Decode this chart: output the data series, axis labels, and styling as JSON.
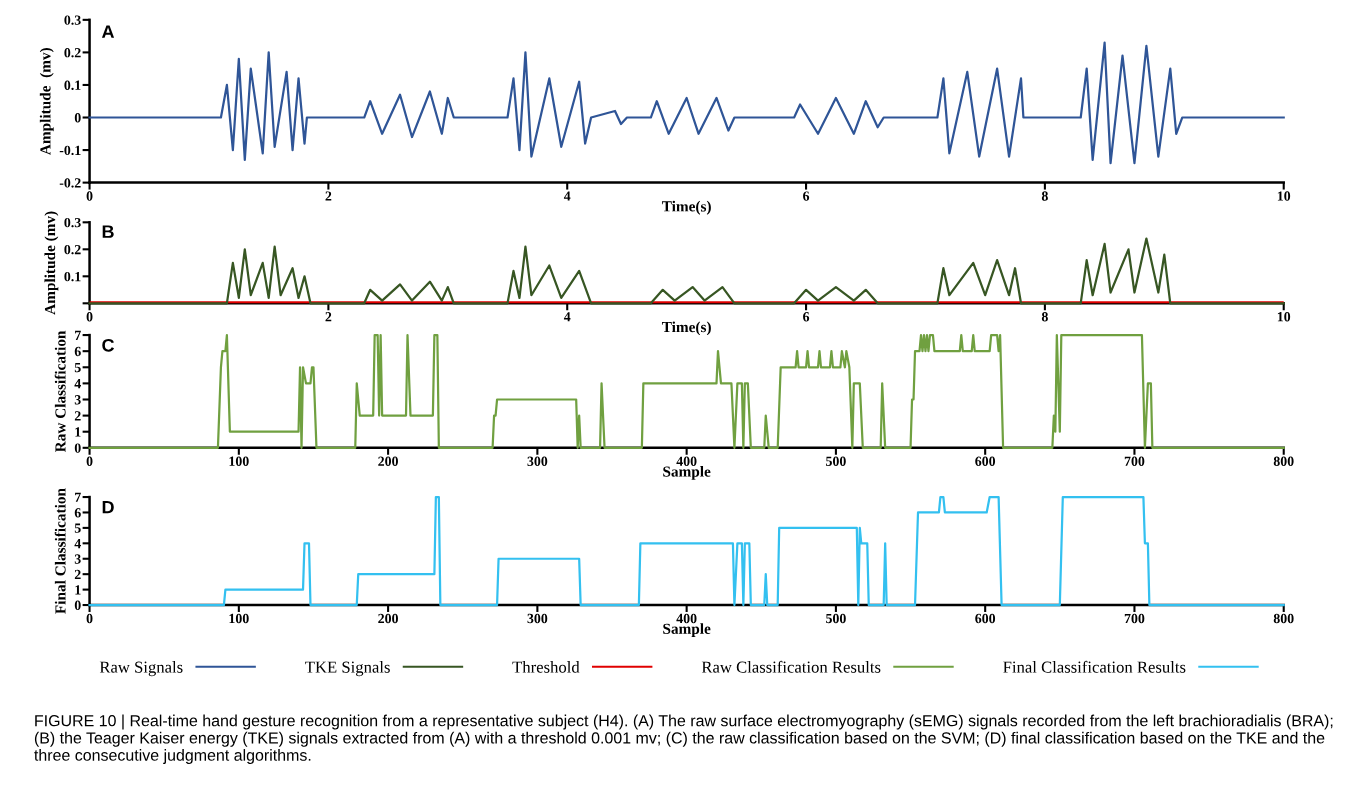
{
  "chart_data": [
    {
      "type": "line",
      "xlabel": "Time(s)",
      "ylabel": "Amplitude  (mv)",
      "annotations": [
        "A"
      ],
      "legend": "bottom",
      "grid": false,
      "xlim": [
        0,
        10
      ],
      "xticks": [
        0,
        2,
        4,
        6,
        8,
        10
      ],
      "ylim": [
        -0.2,
        0.3
      ],
      "yticks": [
        -0.2,
        -0.1,
        0,
        0.1,
        0.2,
        0.3
      ],
      "series": [
        {
          "name": "Raw Signals",
          "color": "#2f5597",
          "x": [
            0,
            1.1,
            1.15,
            1.2,
            1.25,
            1.3,
            1.35,
            1.45,
            1.5,
            1.55,
            1.65,
            1.7,
            1.75,
            1.8,
            1.82,
            2.3,
            2.35,
            2.45,
            2.6,
            2.7,
            2.85,
            2.95,
            3.0,
            3.05,
            3.5,
            3.55,
            3.6,
            3.65,
            3.7,
            3.85,
            3.95,
            4.1,
            4.15,
            4.2,
            4.4,
            4.45,
            4.5,
            4.7,
            4.75,
            4.85,
            5.0,
            5.1,
            5.25,
            5.35,
            5.4,
            5.9,
            5.95,
            6.1,
            6.25,
            6.4,
            6.5,
            6.6,
            6.65,
            7.1,
            7.15,
            7.2,
            7.35,
            7.45,
            7.6,
            7.7,
            7.8,
            7.82,
            8.3,
            8.35,
            8.4,
            8.5,
            8.55,
            8.65,
            8.75,
            8.85,
            8.95,
            9.05,
            9.1,
            9.15,
            10
          ],
          "values": [
            0,
            0,
            0.1,
            -0.1,
            0.18,
            -0.13,
            0.15,
            -0.11,
            0.2,
            -0.09,
            0.14,
            -0.1,
            0.12,
            -0.08,
            0,
            0,
            0.05,
            -0.05,
            0.07,
            -0.06,
            0.08,
            -0.05,
            0.06,
            0,
            0,
            0.12,
            -0.1,
            0.2,
            -0.12,
            0.12,
            -0.09,
            0.11,
            -0.08,
            0,
            0.02,
            -0.02,
            0,
            0,
            0.05,
            -0.05,
            0.06,
            -0.05,
            0.06,
            -0.04,
            0,
            0,
            0.04,
            -0.05,
            0.06,
            -0.05,
            0.05,
            -0.03,
            0,
            0,
            0.12,
            -0.11,
            0.14,
            -0.12,
            0.15,
            -0.12,
            0.12,
            0,
            0,
            0.15,
            -0.13,
            0.23,
            -0.14,
            0.19,
            -0.14,
            0.22,
            -0.12,
            0.15,
            -0.05,
            0,
            0
          ]
        }
      ]
    },
    {
      "type": "line",
      "xlabel": "Time(s)",
      "ylabel": "Amplitude (mv)",
      "annotations": [
        "B"
      ],
      "legend": "bottom",
      "grid": false,
      "xlim": [
        0,
        10
      ],
      "xticks": [
        0,
        2,
        4,
        6,
        8,
        10
      ],
      "ylim": [
        0,
        0.3
      ],
      "yticks": [
        {
          "value": 0,
          "label": null
        },
        0.1,
        0.2,
        0.3
      ],
      "ref_lines": [
        {
          "axis": "y",
          "value": 0.001,
          "label": "Threshold",
          "color": "#e00000"
        }
      ],
      "series": [
        {
          "name": "TKE Signals",
          "color": "#375623",
          "x": [
            0,
            1.15,
            1.2,
            1.25,
            1.3,
            1.35,
            1.45,
            1.5,
            1.55,
            1.6,
            1.7,
            1.75,
            1.8,
            1.85,
            2.3,
            2.35,
            2.45,
            2.6,
            2.7,
            2.85,
            2.95,
            3.0,
            3.05,
            3.5,
            3.55,
            3.6,
            3.65,
            3.7,
            3.85,
            3.95,
            4.1,
            4.2,
            4.7,
            4.8,
            4.9,
            5.05,
            5.15,
            5.3,
            5.4,
            5.9,
            6.0,
            6.1,
            6.25,
            6.4,
            6.5,
            6.6,
            7.1,
            7.15,
            7.2,
            7.4,
            7.5,
            7.6,
            7.7,
            7.75,
            7.8,
            8.3,
            8.35,
            8.4,
            8.5,
            8.55,
            8.7,
            8.75,
            8.85,
            8.95,
            9.0,
            9.05,
            10
          ],
          "values": [
            0,
            0,
            0.15,
            0.02,
            0.2,
            0.03,
            0.15,
            0.02,
            0.21,
            0.03,
            0.13,
            0.02,
            0.1,
            0,
            0,
            0.05,
            0.01,
            0.07,
            0.01,
            0.08,
            0.01,
            0.06,
            0,
            0,
            0.12,
            0.02,
            0.21,
            0.03,
            0.14,
            0.02,
            0.12,
            0,
            0,
            0.05,
            0.01,
            0.06,
            0.01,
            0.06,
            0,
            0,
            0.05,
            0.01,
            0.06,
            0.01,
            0.05,
            0,
            0,
            0.13,
            0.03,
            0.15,
            0.03,
            0.16,
            0.03,
            0.13,
            0,
            0,
            0.16,
            0.03,
            0.22,
            0.04,
            0.2,
            0.04,
            0.24,
            0.04,
            0.18,
            0,
            0
          ]
        }
      ]
    },
    {
      "type": "line",
      "xlabel": "Sample",
      "ylabel": "Raw Classification",
      "annotations": [
        "C"
      ],
      "legend": "bottom",
      "grid": false,
      "xlim": [
        0,
        800
      ],
      "xticks": [
        0,
        100,
        200,
        300,
        400,
        500,
        600,
        700,
        800
      ],
      "ylim": [
        0,
        7
      ],
      "yticks": [
        0,
        1,
        2,
        3,
        4,
        5,
        6,
        7
      ],
      "series": [
        {
          "name": "Raw Classification Results",
          "color": "#70a040",
          "x": [
            0,
            86,
            88,
            89,
            91,
            92,
            94,
            140,
            141,
            142,
            143,
            145,
            148,
            149,
            150,
            152,
            178,
            179,
            181,
            190,
            191,
            193,
            194,
            195,
            196,
            212,
            213,
            215,
            230,
            231,
            233,
            234,
            270,
            271,
            272,
            273,
            326,
            327,
            328,
            329,
            342,
            343,
            345,
            370,
            371,
            420,
            421,
            423,
            430,
            432,
            434,
            437,
            438,
            439,
            441,
            443,
            452,
            453,
            455,
            461,
            463,
            473,
            474,
            475,
            480,
            481,
            482,
            488,
            489,
            490,
            496,
            497,
            498,
            503,
            504,
            506,
            507,
            509,
            511,
            512,
            516,
            518,
            530,
            531,
            533,
            550,
            551,
            552,
            553,
            556,
            557,
            558,
            559,
            560,
            561,
            562,
            563,
            565,
            566,
            583,
            584,
            585,
            591,
            592,
            593,
            603,
            604,
            608,
            609,
            610,
            612,
            645,
            646,
            647,
            648,
            650,
            651,
            705,
            707,
            709,
            711,
            712,
            800
          ],
          "values": [
            0,
            0,
            5,
            6,
            6,
            7,
            1,
            1,
            5,
            0,
            5,
            4,
            4,
            5,
            5,
            0,
            0,
            4,
            2,
            2,
            7,
            7,
            2,
            7,
            2,
            2,
            7,
            2,
            2,
            7,
            7,
            0,
            0,
            2,
            2,
            3,
            3,
            0,
            2,
            0,
            0,
            4,
            0,
            0,
            4,
            4,
            6,
            4,
            4,
            0,
            4,
            4,
            0,
            4,
            4,
            0,
            0,
            2,
            0,
            0,
            5,
            5,
            6,
            5,
            5,
            6,
            5,
            5,
            6,
            5,
            5,
            6,
            5,
            5,
            6,
            5,
            6,
            5,
            0,
            4,
            4,
            0,
            0,
            4,
            0,
            0,
            3,
            3,
            6,
            6,
            7,
            6,
            7,
            6,
            7,
            6,
            7,
            7,
            6,
            6,
            7,
            6,
            6,
            7,
            6,
            6,
            7,
            7,
            6,
            7,
            0,
            0,
            2,
            1,
            7,
            1,
            7,
            7,
            0,
            4,
            4,
            0,
            0
          ]
        }
      ]
    },
    {
      "type": "line",
      "xlabel": "Sample",
      "ylabel": "Final Classification",
      "annotations": [
        "D",
        "FIGURE 10 | Real-time hand gesture recognition from a representative subject (H4). (A) The raw surface electromyography (sEMG) signals recorded from the left brachioradialis (BRA); (B) the Teager Kaiser energy (TKE) signals extracted from (A) with a threshold 0.001 mv; (C) the raw classification based on the SVM; (D) final classification based on the TKE and the three consecutive judgment algorithms."
      ],
      "legend": "bottom",
      "grid": false,
      "xlim": [
        0,
        800
      ],
      "xticks": [
        0,
        100,
        200,
        300,
        400,
        500,
        600,
        700,
        800
      ],
      "ylim": [
        0,
        7
      ],
      "yticks": [
        0,
        1,
        2,
        3,
        4,
        5,
        6,
        7
      ],
      "series": [
        {
          "name": "Final Classification Results",
          "color": "#33c0f0",
          "x": [
            0,
            90,
            91,
            143,
            144,
            147,
            148,
            179,
            180,
            231,
            232,
            234,
            235,
            273,
            274,
            328,
            329,
            368,
            369,
            431,
            432,
            434,
            437,
            438,
            439,
            442,
            443,
            452,
            453,
            454,
            461,
            462,
            514,
            515,
            516,
            517,
            521,
            522,
            532,
            533,
            534,
            553,
            555,
            569,
            570,
            572,
            573,
            601,
            603,
            609,
            611,
            650,
            652,
            706,
            707,
            709,
            710,
            800
          ],
          "values": [
            0,
            0,
            1,
            1,
            4,
            4,
            0,
            0,
            2,
            2,
            7,
            7,
            0,
            0,
            3,
            3,
            0,
            0,
            4,
            4,
            0,
            4,
            4,
            0,
            4,
            4,
            0,
            0,
            2,
            0,
            0,
            5,
            5,
            0,
            5,
            4,
            4,
            0,
            0,
            4,
            0,
            0,
            6,
            6,
            7,
            7,
            6,
            6,
            7,
            7,
            0,
            0,
            7,
            7,
            4,
            4,
            0,
            0
          ]
        }
      ]
    }
  ]
}
